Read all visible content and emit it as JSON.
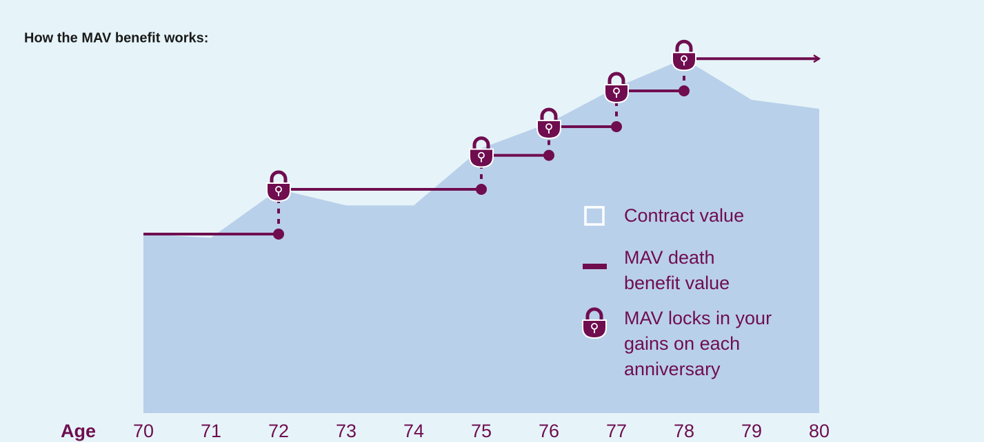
{
  "chart_data": {
    "type": "area",
    "title": "How the MAV benefit works:",
    "x_label": "Age",
    "x": [
      70,
      71,
      72,
      73,
      74,
      75,
      76,
      77,
      78,
      79,
      80
    ],
    "xlim": [
      70,
      80
    ],
    "ylim": [
      0,
      100
    ],
    "series": [
      {
        "name": "Contract value",
        "color": "#b9d0ea",
        "values": [
          50,
          49,
          62.5,
          58,
          58,
          74,
          81,
          91,
          99,
          87.5,
          85
        ]
      },
      {
        "name": "MAV death benefit value",
        "color": "#6f0d4f",
        "values": [
          50,
          50,
          62.5,
          62.5,
          62.5,
          72,
          80,
          90,
          99,
          99,
          99
        ]
      }
    ],
    "lock_label": "MAV locks in your gains on each anniversary"
  }
}
